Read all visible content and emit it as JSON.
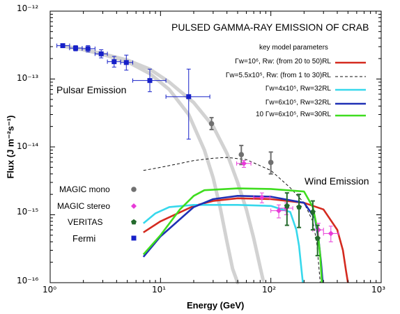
{
  "chart_data": {
    "type": "scatter",
    "title": "PULSED GAMMA-RAY EMISSION OF CRAB",
    "xlabel": "Energy (GeV)",
    "ylabel": "Flux (J m⁻²s⁻¹)",
    "xscale": "log",
    "yscale": "log",
    "xlim": [
      1,
      1000
    ],
    "ylim": [
      1e-16,
      1e-12
    ],
    "x_ticks": [
      {
        "value": 1,
        "label": "10⁰"
      },
      {
        "value": 10,
        "label": "10¹"
      },
      {
        "value": 100,
        "label": "10²"
      },
      {
        "value": 1000,
        "label": "10³"
      }
    ],
    "y_ticks": [
      {
        "value": 1e-16,
        "label": "10⁻¹⁶"
      },
      {
        "value": 1e-15,
        "label": "10⁻¹⁵"
      },
      {
        "value": 1e-14,
        "label": "10⁻¹⁴"
      },
      {
        "value": 1e-13,
        "label": "10⁻¹³"
      },
      {
        "value": 1e-12,
        "label": "10⁻¹²"
      }
    ],
    "annotations": [
      "Pulsar Emission",
      "Wind Emission"
    ],
    "model_legend_title": "key model parameters",
    "models": [
      {
        "name": "Γw=10⁶, Rw: (from 20 to 50)RL",
        "color": "#d42a1f",
        "dash": "solid",
        "x": [
          7,
          10,
          20,
          30,
          50,
          100,
          200,
          300,
          400,
          450,
          480,
          500
        ],
        "y": [
          5.5e-16,
          8e-16,
          1.35e-15,
          1.6e-15,
          1.75e-15,
          1.7e-15,
          1.5e-15,
          1.2e-15,
          6e-16,
          3e-16,
          1.5e-16,
          1e-16
        ]
      },
      {
        "name": "Γw=5.5x10⁵, Rw: (from 1 to 30)RL",
        "color": "#111111",
        "dash": "dashed",
        "x": [
          7,
          10,
          15,
          20,
          30,
          40,
          60,
          100,
          150,
          200,
          240,
          260,
          270,
          280
        ],
        "y": [
          4.5e-15,
          5e-15,
          5.7e-15,
          6.3e-15,
          6.8e-15,
          7e-15,
          6.5e-15,
          4.5e-15,
          2.5e-15,
          1.5e-15,
          8e-16,
          4e-16,
          2e-16,
          1e-16
        ]
      },
      {
        "name": "Γw=4x10⁵, Rw=32RL",
        "color": "#37d8ec",
        "dash": "solid",
        "x": [
          7,
          9,
          12,
          20,
          50,
          100,
          150,
          170,
          180,
          190,
          195
        ],
        "y": [
          7.5e-16,
          1.05e-15,
          1.3e-15,
          1.4e-15,
          1.4e-15,
          1.35e-15,
          1.1e-15,
          6e-16,
          3.5e-16,
          1.5e-16,
          1e-16
        ]
      },
      {
        "name": "Γw=6x10⁵, Rw=32RL",
        "color": "#1f30b5",
        "dash": "solid",
        "x": [
          7,
          10,
          20,
          30,
          50,
          100,
          200,
          250,
          270,
          285,
          295
        ],
        "y": [
          2.4e-16,
          4.8e-16,
          1.3e-15,
          1.7e-15,
          1.9e-15,
          1.85e-15,
          1.5e-15,
          9e-16,
          4.5e-16,
          2e-16,
          1e-16
        ]
      },
      {
        "name": "10 Γw=6x10⁵, Rw=30RL",
        "color": "#3fdd1f",
        "dash": "solid",
        "x": [
          7,
          10,
          15,
          20,
          25,
          50,
          100,
          200,
          240,
          265,
          280,
          290
        ],
        "y": [
          2.6e-16,
          5e-16,
          1.2e-15,
          1.9e-15,
          2.3e-15,
          2.45e-15,
          2.4e-15,
          2.2e-15,
          1.3e-15,
          6e-16,
          2.5e-16,
          1e-16
        ]
      }
    ],
    "curvature_bands": [
      {
        "color": "#d2d2d2",
        "x": [
          1.4,
          2,
          3,
          5,
          8,
          12,
          18,
          25,
          30,
          35,
          40,
          45,
          50
        ],
        "y": [
          3e-13,
          2.7e-13,
          2.3e-13,
          1.8e-13,
          1.2e-13,
          7e-14,
          3e-14,
          9e-15,
          3.5e-15,
          1.2e-15,
          4e-16,
          1.6e-16,
          1e-16
        ]
      },
      {
        "color": "#d2d2d2",
        "x": [
          1.4,
          2,
          3,
          5,
          8,
          12,
          20,
          30,
          40,
          50,
          60,
          70,
          80,
          85
        ],
        "y": [
          3e-13,
          2.75e-13,
          2.35e-13,
          1.9e-13,
          1.4e-13,
          9e-14,
          4.5e-14,
          2e-14,
          8e-15,
          3e-15,
          1.2e-15,
          4.5e-16,
          1.7e-16,
          1.1e-16
        ]
      }
    ],
    "data_legend": [
      {
        "name": "MAGIC mono",
        "color": "#707070",
        "marker": "circle"
      },
      {
        "name": "MAGIC stereo",
        "color": "#e83ad8",
        "marker": "diamond"
      },
      {
        "name": "VERITAS",
        "color": "#246a2c",
        "marker": "pentagon"
      },
      {
        "name": "Fermi",
        "color": "#1620c8",
        "marker": "square"
      }
    ],
    "datasets": [
      {
        "name": "Fermi",
        "points": [
          {
            "x": 1.3,
            "y": 3.1e-13,
            "xlo": 1.15,
            "xhi": 1.5,
            "ylo": 2.9e-13,
            "yhi": 3.3e-13
          },
          {
            "x": 1.7,
            "y": 2.85e-13,
            "xlo": 1.5,
            "xhi": 1.95,
            "ylo": 2.6e-13,
            "yhi": 3.1e-13
          },
          {
            "x": 2.2,
            "y": 2.8e-13,
            "xlo": 1.95,
            "xhi": 2.55,
            "ylo": 2.5e-13,
            "yhi": 3.1e-13
          },
          {
            "x": 2.9,
            "y": 2.35e-13,
            "xlo": 2.55,
            "xhi": 3.3,
            "ylo": 2.05e-13,
            "yhi": 2.7e-13
          },
          {
            "x": 3.8,
            "y": 1.8e-13,
            "xlo": 3.3,
            "xhi": 4.35,
            "ylo": 1.5e-13,
            "yhi": 2.15e-13
          },
          {
            "x": 4.9,
            "y": 1.75e-13,
            "xlo": 4.35,
            "xhi": 5.6,
            "ylo": 1.35e-13,
            "yhi": 2.25e-13
          },
          {
            "x": 8.0,
            "y": 9.5e-14,
            "xlo": 5.6,
            "xhi": 11.2,
            "ylo": 6.5e-14,
            "yhi": 1.4e-13
          },
          {
            "x": 18,
            "y": 5.5e-14,
            "xlo": 11.2,
            "xhi": 28,
            "ylo": 1.3e-14,
            "yhi": 1.4e-13
          }
        ]
      },
      {
        "name": "MAGIC mono",
        "points": [
          {
            "x": 29,
            "y": 2.2e-14,
            "ylo": 1.8e-14,
            "yhi": 2.7e-14
          },
          {
            "x": 54,
            "y": 7.7e-15,
            "ylo": 5.5e-15,
            "yhi": 1.05e-14
          },
          {
            "x": 100,
            "y": 5.9e-15,
            "ylo": 4e-15,
            "yhi": 8.4e-15
          }
        ]
      },
      {
        "name": "MAGIC stereo",
        "points": [
          {
            "x": 57,
            "y": 5.7e-15,
            "xlo": 49,
            "xhi": 66,
            "ylo": 5e-15,
            "yhi": 6.3e-15
          },
          {
            "x": 83,
            "y": 1.8e-15,
            "xlo": 70,
            "xhi": 98,
            "ylo": 1.5e-15,
            "yhi": 2.1e-15
          },
          {
            "x": 118,
            "y": 1.15e-15,
            "xlo": 100,
            "xhi": 138,
            "ylo": 9e-16,
            "yhi": 1.4e-15
          },
          {
            "x": 138,
            "y": 1.25e-15,
            "xlo": 118,
            "xhi": 158,
            "ylo": 1e-15,
            "yhi": 1.5e-15
          },
          {
            "x": 270,
            "y": 6e-16,
            "xlo": 240,
            "xhi": 300,
            "ylo": 4.5e-16,
            "yhi": 7.5e-16
          },
          {
            "x": 350,
            "y": 5.3e-16,
            "xlo": 300,
            "xhi": 410,
            "ylo": 4e-16,
            "yhi": 6.8e-16
          }
        ]
      },
      {
        "name": "VERITAS",
        "points": [
          {
            "x": 140,
            "y": 1.35e-15,
            "ylo": 7e-16,
            "yhi": 2.1e-15
          },
          {
            "x": 180,
            "y": 1.3e-15,
            "ylo": 6.5e-16,
            "yhi": 2e-15
          },
          {
            "x": 240,
            "y": 1.1e-15,
            "ylo": 6e-16,
            "yhi": 1.6e-15
          },
          {
            "x": 265,
            "y": 4.5e-16,
            "ylo": 2.5e-16,
            "yhi": 7e-16
          }
        ]
      }
    ]
  }
}
